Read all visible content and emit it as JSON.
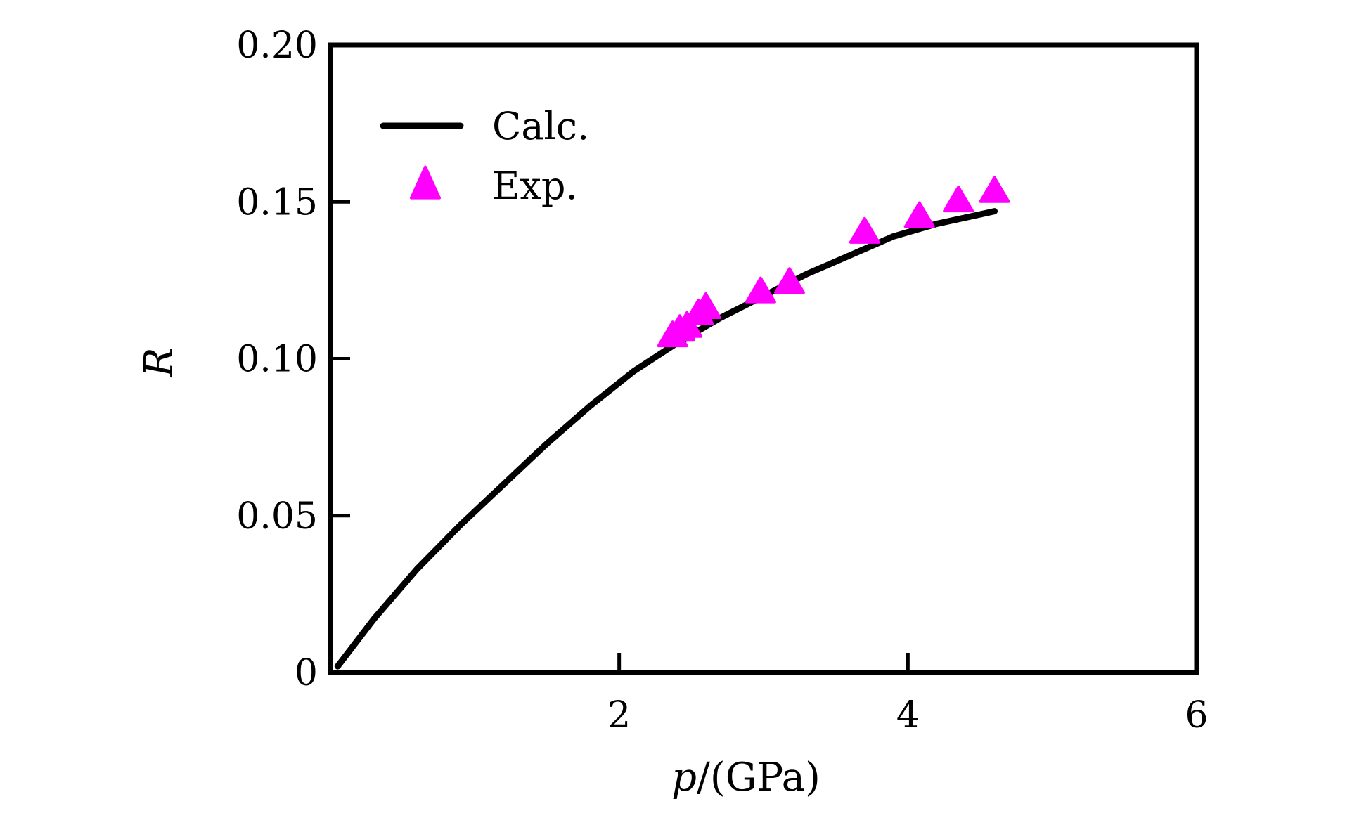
{
  "chart_data": {
    "type": "line",
    "title": "",
    "xlabel": {
      "var": "p",
      "unit": "/(GPa)"
    },
    "ylabel": "R",
    "xlim": [
      0,
      6
    ],
    "ylim": [
      0,
      0.2
    ],
    "x_ticks": [
      {
        "value": 2,
        "label": "2"
      },
      {
        "value": 4,
        "label": "4"
      },
      {
        "value": 6,
        "label": "6"
      }
    ],
    "y_ticks": [
      {
        "value": 0,
        "label": "0"
      },
      {
        "value": 0.05,
        "label": "0.05"
      },
      {
        "value": 0.1,
        "label": "0.10"
      },
      {
        "value": 0.15,
        "label": "0.15"
      },
      {
        "value": 0.2,
        "label": "0.20"
      }
    ],
    "legend_position": "top-left",
    "series": [
      {
        "name": "Calc.",
        "kind": "line",
        "color": "#000000",
        "points": [
          [
            0.05,
            0.002
          ],
          [
            0.3,
            0.017
          ],
          [
            0.6,
            0.033
          ],
          [
            0.9,
            0.047
          ],
          [
            1.2,
            0.06
          ],
          [
            1.5,
            0.073
          ],
          [
            1.8,
            0.085
          ],
          [
            2.1,
            0.096
          ],
          [
            2.4,
            0.105
          ],
          [
            2.7,
            0.113
          ],
          [
            3.0,
            0.12
          ],
          [
            3.3,
            0.127
          ],
          [
            3.6,
            0.133
          ],
          [
            3.9,
            0.139
          ],
          [
            4.2,
            0.143
          ],
          [
            4.5,
            0.146
          ],
          [
            4.6,
            0.147
          ]
        ]
      },
      {
        "name": "Exp.",
        "kind": "scatter",
        "marker": "triangle",
        "color": "#ff00ff",
        "points": [
          [
            2.37,
            0.107
          ],
          [
            2.42,
            0.109
          ],
          [
            2.47,
            0.11
          ],
          [
            2.55,
            0.114
          ],
          [
            2.6,
            0.116
          ],
          [
            2.98,
            0.121
          ],
          [
            3.18,
            0.124
          ],
          [
            3.7,
            0.14
          ],
          [
            4.08,
            0.145
          ],
          [
            4.35,
            0.15
          ],
          [
            4.6,
            0.153
          ]
        ]
      }
    ]
  }
}
